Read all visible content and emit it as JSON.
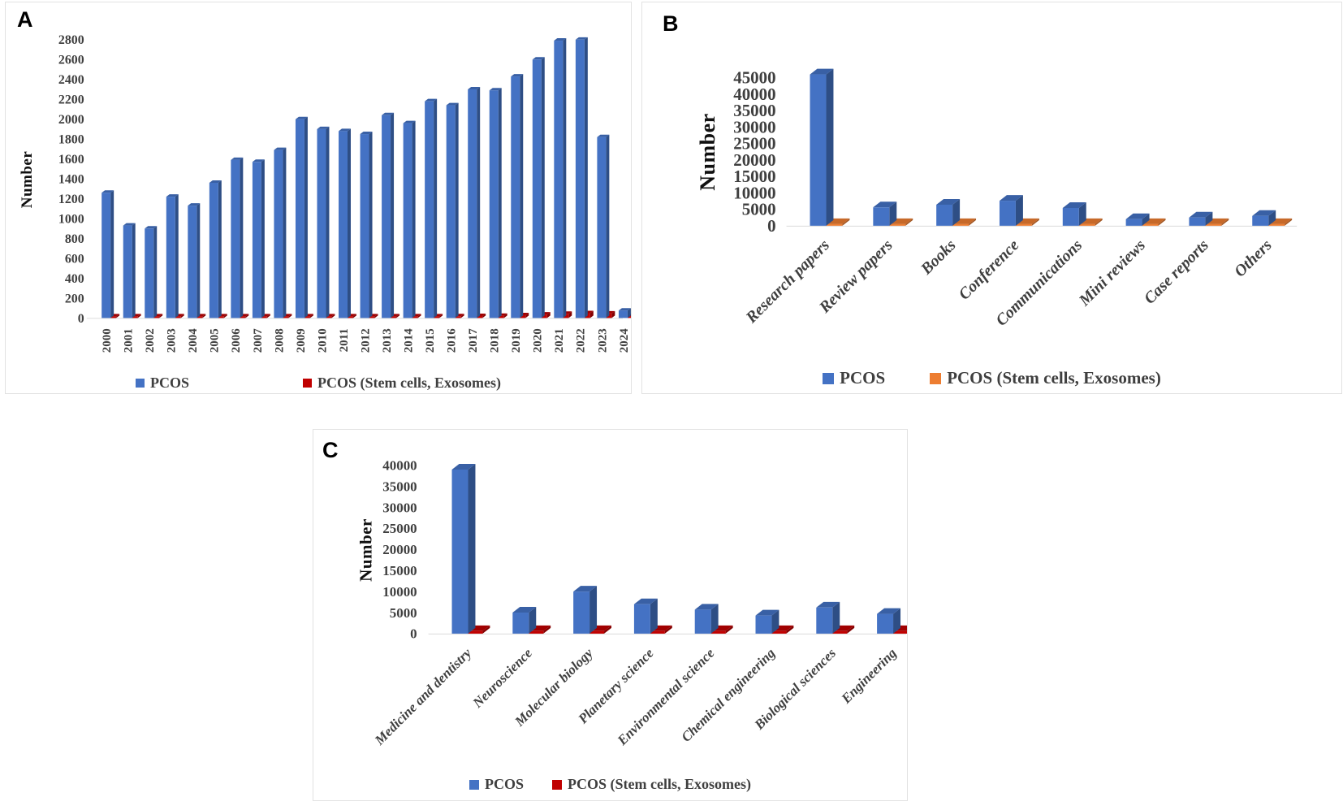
{
  "figure": {
    "background": "#ffffff",
    "series_colors": {
      "pcos_blue": "#4472C4",
      "stem_orange": "#ED7D31",
      "stem_red": "#C00000"
    }
  },
  "chart_data": [
    {
      "id": "A",
      "panel_label": "A",
      "type": "bar",
      "ylabel": "Number",
      "ylim": [
        0,
        2800
      ],
      "ytick_step": 200,
      "grid": false,
      "legend_position": "bottom",
      "categories": [
        "2000",
        "2001",
        "2002",
        "2003",
        "2004",
        "2005",
        "2006",
        "2007",
        "2008",
        "2009",
        "2010",
        "2011",
        "2012",
        "2013",
        "2014",
        "2015",
        "2016",
        "2017",
        "2018",
        "2019",
        "2020",
        "2021",
        "2022",
        "2023",
        "2024"
      ],
      "series": [
        {
          "name": "PCOS",
          "color": "#4472C4",
          "values": [
            1260,
            930,
            900,
            1220,
            1130,
            1360,
            1590,
            1570,
            1690,
            2000,
            1900,
            1880,
            1850,
            2040,
            1960,
            2180,
            2140,
            2300,
            2290,
            2430,
            2600,
            2790,
            2800,
            1820,
            75
          ]
        },
        {
          "name": "PCOS (Stem cells, Exosomes)",
          "color": "#C00000",
          "values": [
            3,
            2,
            2,
            3,
            3,
            4,
            5,
            5,
            6,
            8,
            8,
            10,
            10,
            12,
            14,
            15,
            18,
            20,
            22,
            28,
            35,
            42,
            48,
            45,
            12
          ]
        }
      ]
    },
    {
      "id": "B",
      "panel_label": "B",
      "type": "bar",
      "ylabel": "Number",
      "ylim": [
        0,
        45000
      ],
      "ytick_step": 5000,
      "grid": false,
      "legend_position": "bottom",
      "categories": [
        "Research papers",
        "Review papers",
        "Books",
        "Conference",
        "Communications",
        "Mini reviews",
        "Case reports",
        "Others"
      ],
      "series": [
        {
          "name": "PCOS",
          "color": "#4472C4",
          "values": [
            46000,
            5600,
            6400,
            7600,
            5400,
            2000,
            2500,
            3000
          ]
        },
        {
          "name": "PCOS (Stem cells, Exosomes)",
          "color": "#ED7D31",
          "values": [
            300,
            300,
            300,
            300,
            300,
            300,
            300,
            300
          ]
        }
      ]
    },
    {
      "id": "C",
      "panel_label": "C",
      "type": "bar",
      "ylabel": "Number",
      "ylim": [
        0,
        40000
      ],
      "ytick_step": 5000,
      "grid": false,
      "legend_position": "bottom",
      "categories": [
        "Medicine and dentistry",
        "Neuroscience",
        "Molecular biology",
        "Planetary science",
        "Environmental science",
        "Chemical engineering",
        "Biological sciences",
        "Engineering"
      ],
      "series": [
        {
          "name": "PCOS",
          "color": "#4472C4",
          "values": [
            39000,
            5000,
            10000,
            7000,
            5700,
            4300,
            6200,
            4700
          ]
        },
        {
          "name": "PCOS (Stem cells, Exosomes)",
          "color": "#C00000",
          "values": [
            600,
            600,
            600,
            600,
            600,
            600,
            600,
            600
          ]
        }
      ]
    }
  ]
}
